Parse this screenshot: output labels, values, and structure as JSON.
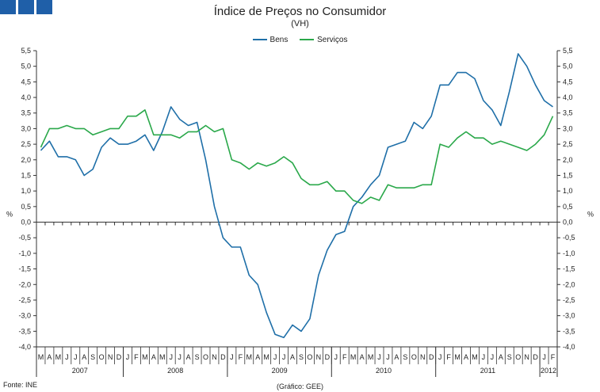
{
  "header": {
    "logo_color": "#1f5fa8",
    "logo_icon": "gee-logo-squares"
  },
  "chart_data": {
    "type": "line",
    "title": "Índice de Preços no Consumidor",
    "subtitle": "(VH)",
    "ylabel_left": "%",
    "ylabel_right": "%",
    "ylim": [
      -4.0,
      5.5
    ],
    "yticks": [
      "5,5",
      "5,0",
      "4,5",
      "4,0",
      "3,5",
      "3,0",
      "2,5",
      "2,0",
      "1,5",
      "1,0",
      "0,5",
      "0,0",
      "-0,5",
      "-1,0",
      "-1,5",
      "-2,0",
      "-2,5",
      "-3,0",
      "-3,5",
      "-4,0"
    ],
    "ytick_values": [
      5.5,
      5.0,
      4.5,
      4.0,
      3.5,
      3.0,
      2.5,
      2.0,
      1.5,
      1.0,
      0.5,
      0.0,
      -0.5,
      -1.0,
      -1.5,
      -2.0,
      -2.5,
      -3.0,
      -3.5,
      -4.0
    ],
    "months": [
      "M",
      "A",
      "M",
      "J",
      "J",
      "A",
      "S",
      "O",
      "N",
      "D",
      "J",
      "F",
      "M",
      "A",
      "M",
      "J",
      "J",
      "A",
      "S",
      "O",
      "N",
      "D",
      "J",
      "F",
      "M",
      "A",
      "M",
      "J",
      "J",
      "A",
      "S",
      "O",
      "N",
      "D",
      "J",
      "F",
      "M",
      "A",
      "M",
      "J",
      "J",
      "A",
      "S",
      "O",
      "N",
      "D",
      "J",
      "F",
      "M",
      "A",
      "M",
      "J",
      "J",
      "A",
      "S",
      "O",
      "N",
      "D",
      "J",
      "F"
    ],
    "years": [
      {
        "label": "2007",
        "start": 0,
        "count": 10
      },
      {
        "label": "2008",
        "start": 10,
        "count": 12
      },
      {
        "label": "2009",
        "start": 22,
        "count": 12
      },
      {
        "label": "2010",
        "start": 34,
        "count": 12
      },
      {
        "label": "2011",
        "start": 46,
        "count": 12
      },
      {
        "label": "2012",
        "start": 58,
        "count": 2
      }
    ],
    "series": [
      {
        "name": "Bens",
        "color": "#1f6fa8",
        "values": [
          2.3,
          2.6,
          2.1,
          2.1,
          2.0,
          1.5,
          1.7,
          2.4,
          2.7,
          2.5,
          2.5,
          2.6,
          2.8,
          2.3,
          2.9,
          3.7,
          3.3,
          3.1,
          3.2,
          2.0,
          0.5,
          -0.5,
          -0.8,
          -0.8,
          -1.7,
          -2.0,
          -2.9,
          -3.6,
          -3.7,
          -3.3,
          -3.5,
          -3.1,
          -1.7,
          -0.9,
          -0.4,
          -0.3,
          0.5,
          0.8,
          1.2,
          1.5,
          2.4,
          2.5,
          2.6,
          3.2,
          3.0,
          3.4,
          4.4,
          4.4,
          4.8,
          4.8,
          4.6,
          3.9,
          3.6,
          3.1,
          4.2,
          5.4,
          5.0,
          4.4,
          3.9,
          3.7
        ]
      },
      {
        "name": "Serviços",
        "color": "#2aa84a",
        "values": [
          2.4,
          3.0,
          3.0,
          3.1,
          3.0,
          3.0,
          2.8,
          2.9,
          3.0,
          3.0,
          3.4,
          3.4,
          3.6,
          2.8,
          2.8,
          2.8,
          2.7,
          2.9,
          2.9,
          3.1,
          2.9,
          3.0,
          2.0,
          1.9,
          1.7,
          1.9,
          1.8,
          1.9,
          2.1,
          1.9,
          1.4,
          1.2,
          1.2,
          1.3,
          1.0,
          1.0,
          0.7,
          0.6,
          0.8,
          0.7,
          1.2,
          1.1,
          1.1,
          1.1,
          1.2,
          1.2,
          2.5,
          2.4,
          2.7,
          2.9,
          2.7,
          2.7,
          2.5,
          2.6,
          2.5,
          2.4,
          2.3,
          2.5,
          2.8,
          3.4
        ]
      }
    ]
  },
  "footer": {
    "source": "Fonte: INE",
    "credit": "(Gráfico: GEE)"
  }
}
